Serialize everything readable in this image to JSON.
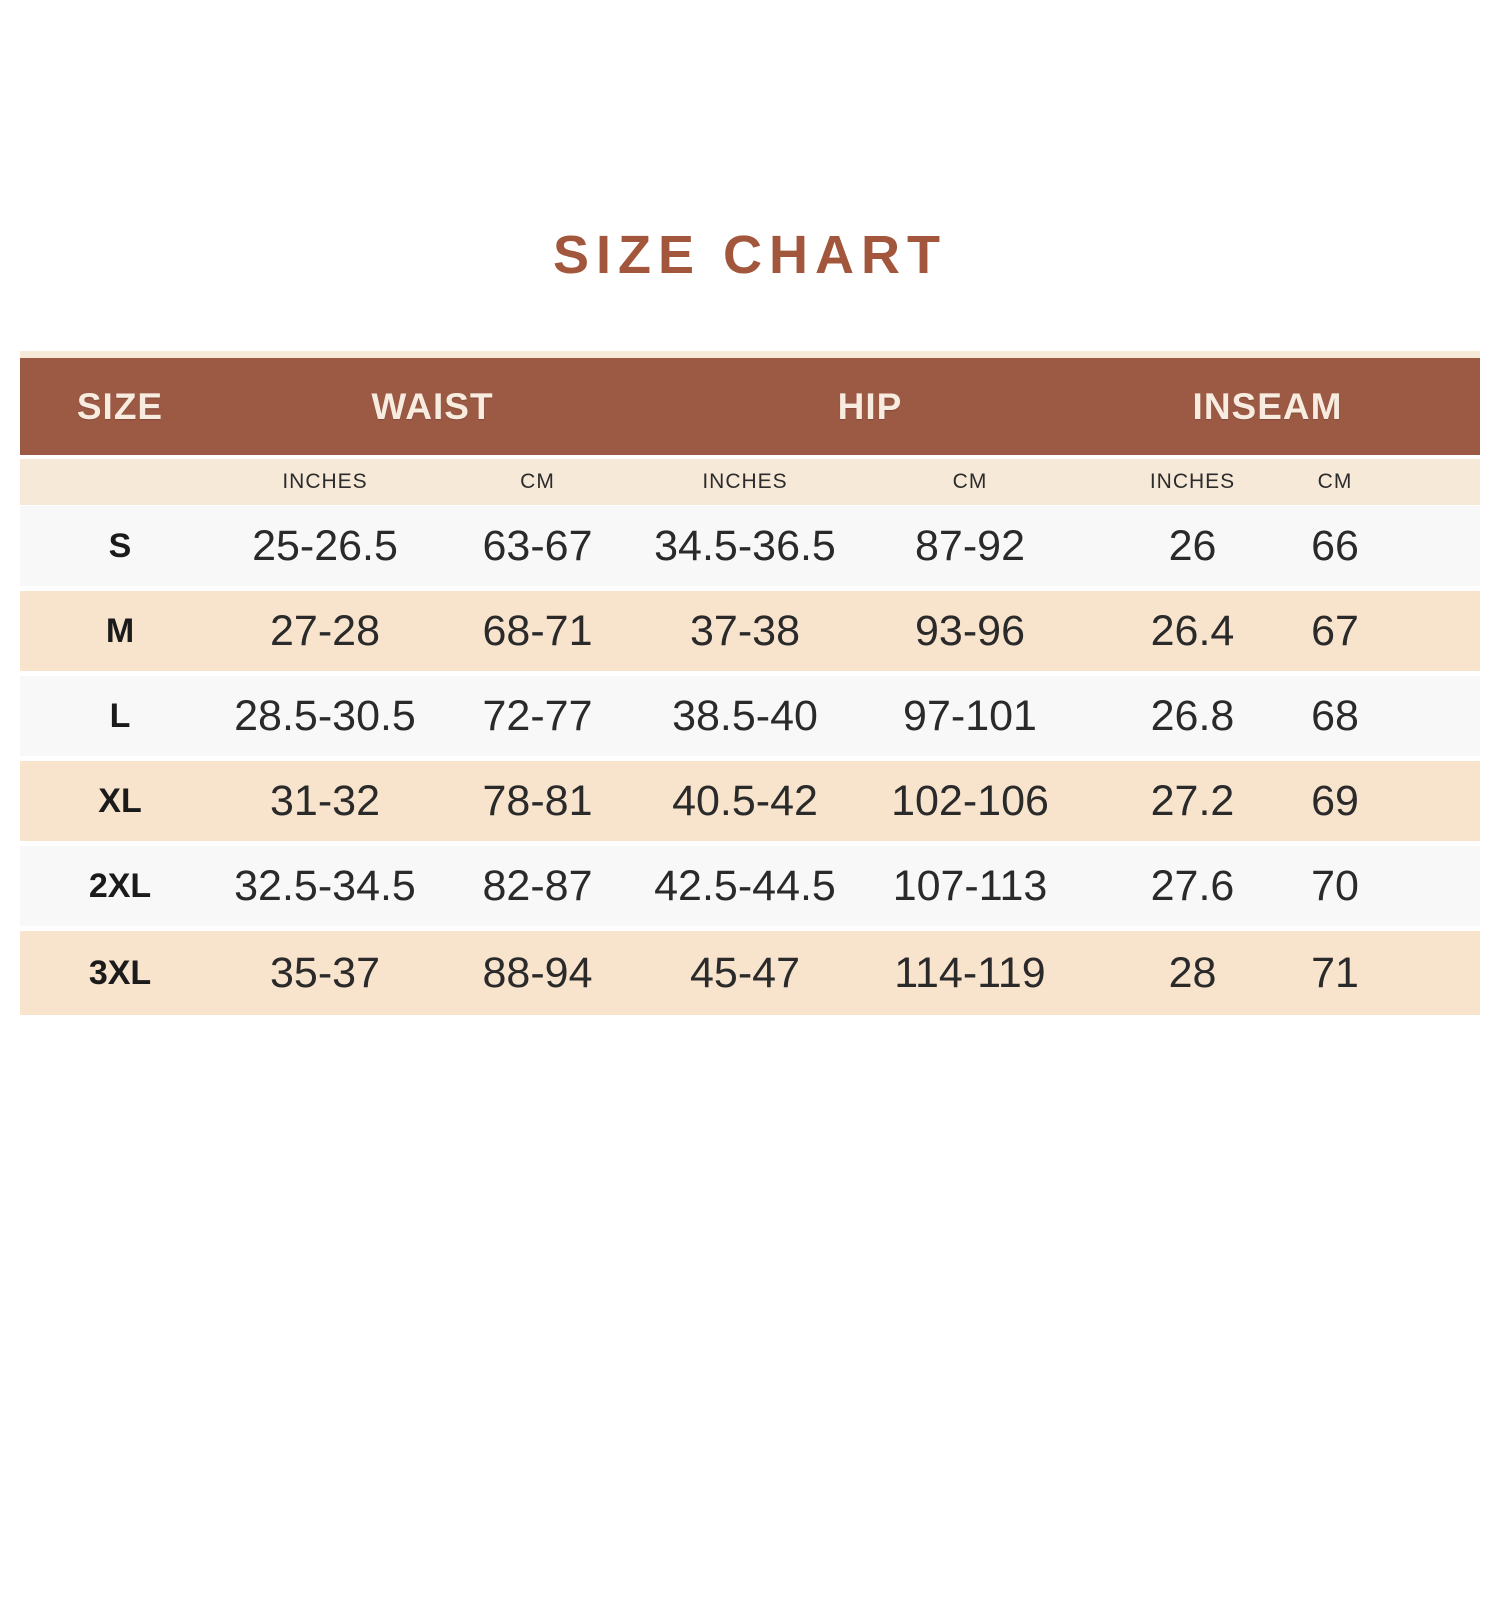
{
  "title": "SIZE CHART",
  "colors": {
    "title_text": "#a2573c",
    "header_bg": "#9c5a45",
    "header_text": "#f7ecdf",
    "subheader_bg": "#f6e9d8",
    "row_peach": "#f8e3cd",
    "row_white": "#f9f8f8",
    "data_text": "#2a2a2a"
  },
  "chart_data": {
    "type": "table",
    "title": "SIZE CHART",
    "group_headers": {
      "size": "SIZE",
      "waist": "WAIST",
      "hip": "HIP",
      "inseam": "INSEAM"
    },
    "unit_header_inches": "INCHES",
    "unit_header_cm": "CM",
    "columns": [
      "SIZE",
      "WAIST INCHES",
      "WAIST CM",
      "HIP INCHES",
      "HIP CM",
      "INSEAM INCHES",
      "INSEAM CM"
    ],
    "rows": [
      [
        "S",
        "25-26.5",
        "63-67",
        "34.5-36.5",
        "87-92",
        "26",
        "66"
      ],
      [
        "M",
        "27-28",
        "68-71",
        "37-38",
        "93-96",
        "26.4",
        "67"
      ],
      [
        "L",
        "28.5-30.5",
        "72-77",
        "38.5-40",
        "97-101",
        "26.8",
        "68"
      ],
      [
        "XL",
        "31-32",
        "78-81",
        "40.5-42",
        "102-106",
        "27.2",
        "69"
      ],
      [
        "2XL",
        "32.5-34.5",
        "82-87",
        "42.5-44.5",
        "107-113",
        "27.6",
        "70"
      ],
      [
        "3XL",
        "35-37",
        "88-94",
        "45-47",
        "114-119",
        "28",
        "71"
      ]
    ]
  }
}
